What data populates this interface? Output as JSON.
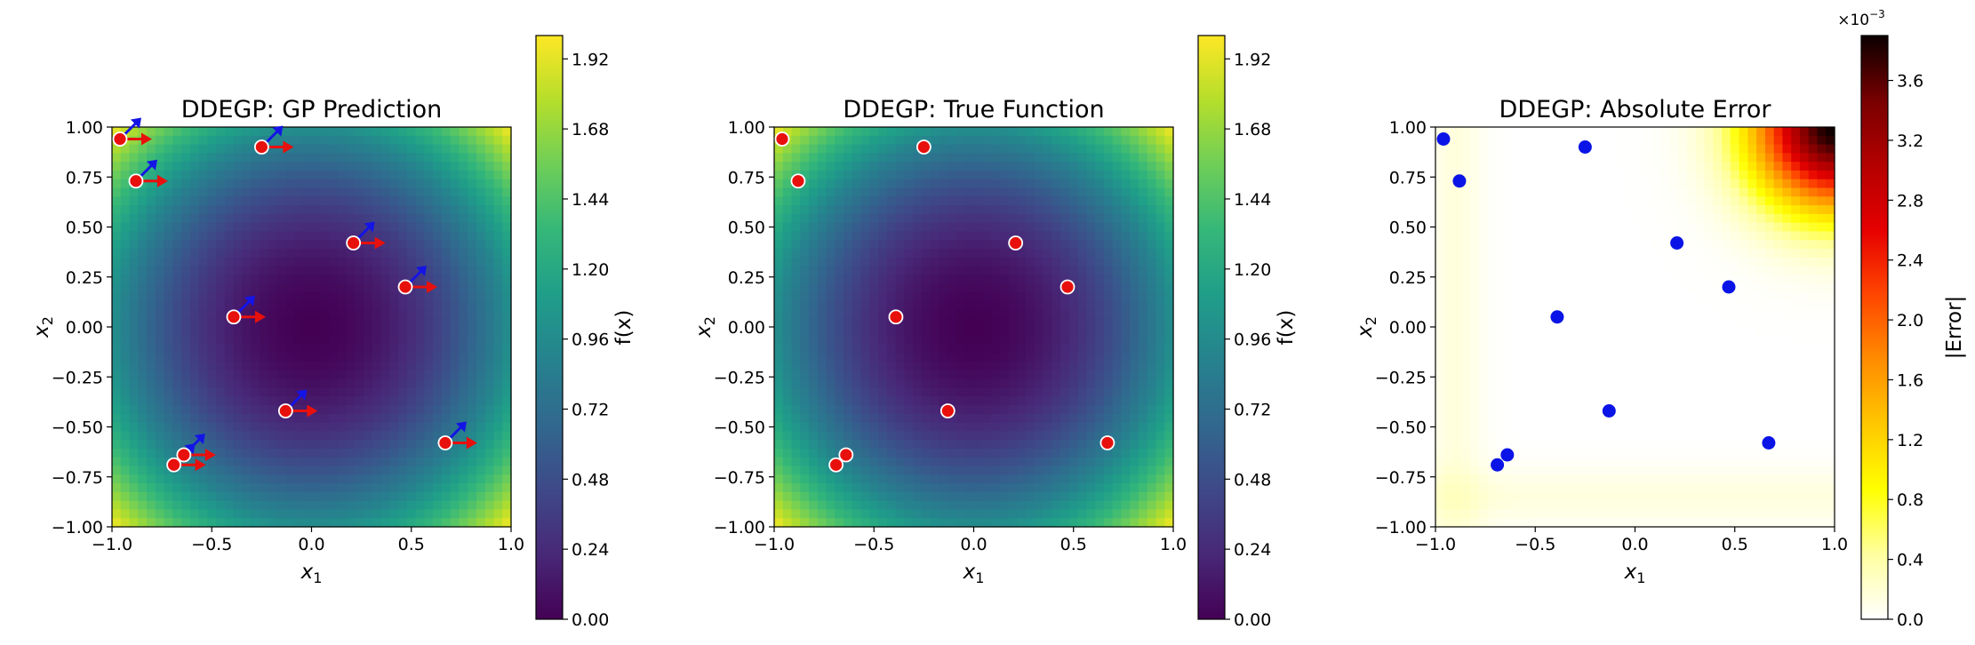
{
  "chart_data": [
    {
      "type": "heatmap",
      "title": "DDEGP: GP Prediction",
      "xlabel": "x_1",
      "ylabel": "x_2",
      "xlim": [
        -1,
        1
      ],
      "ylim": [
        -1,
        1
      ],
      "x_ticks": [
        "−1.0",
        "−0.5",
        "0.0",
        "0.5",
        "1.0"
      ],
      "y_ticks": [
        "1.00",
        "0.75",
        "0.50",
        "0.25",
        "0.00",
        "−0.25",
        "−0.50",
        "−0.75",
        "−1.00"
      ],
      "colormap": "viridis",
      "colorbar": {
        "label": "f(x)",
        "range": [
          0,
          2
        ],
        "ticks": [
          "0.00",
          "0.24",
          "0.48",
          "0.72",
          "0.96",
          "1.20",
          "1.44",
          "1.68",
          "1.92"
        ]
      },
      "points": [
        {
          "x": -0.96,
          "y": 0.94
        },
        {
          "x": -0.88,
          "y": 0.73
        },
        {
          "x": -0.25,
          "y": 0.9
        },
        {
          "x": 0.21,
          "y": 0.42
        },
        {
          "x": 0.47,
          "y": 0.2
        },
        {
          "x": -0.39,
          "y": 0.05
        },
        {
          "x": -0.13,
          "y": -0.42
        },
        {
          "x": 0.67,
          "y": -0.58
        },
        {
          "x": -0.64,
          "y": -0.64
        },
        {
          "x": -0.69,
          "y": -0.69
        }
      ],
      "directional_derivatives": [
        {
          "direction": "+x1",
          "color": "#e8100c"
        },
        {
          "direction": "diagonal",
          "color": "#1414e6"
        }
      ],
      "point_color": "#e8100c"
    },
    {
      "type": "heatmap",
      "title": "DDEGP: True Function",
      "xlabel": "x_1",
      "ylabel": "x_2",
      "xlim": [
        -1,
        1
      ],
      "ylim": [
        -1,
        1
      ],
      "x_ticks": [
        "−1.0",
        "−0.5",
        "0.0",
        "0.5",
        "1.0"
      ],
      "y_ticks": [
        "1.00",
        "0.75",
        "0.50",
        "0.25",
        "0.00",
        "−0.25",
        "−0.50",
        "−0.75",
        "−1.00"
      ],
      "colormap": "viridis",
      "colorbar": {
        "label": "f(x)",
        "range": [
          0,
          2
        ],
        "ticks": [
          "0.00",
          "0.24",
          "0.48",
          "0.72",
          "0.96",
          "1.20",
          "1.44",
          "1.68",
          "1.92"
        ]
      },
      "points": [
        {
          "x": -0.96,
          "y": 0.94
        },
        {
          "x": -0.88,
          "y": 0.73
        },
        {
          "x": -0.25,
          "y": 0.9
        },
        {
          "x": 0.21,
          "y": 0.42
        },
        {
          "x": 0.47,
          "y": 0.2
        },
        {
          "x": -0.39,
          "y": 0.05
        },
        {
          "x": -0.13,
          "y": -0.42
        },
        {
          "x": 0.67,
          "y": -0.58
        },
        {
          "x": -0.64,
          "y": -0.64
        },
        {
          "x": -0.69,
          "y": -0.69
        }
      ],
      "point_color": "#e8100c"
    },
    {
      "type": "heatmap",
      "title": "DDEGP: Absolute Error",
      "xlabel": "x_1",
      "ylabel": "x_2",
      "xlim": [
        -1,
        1
      ],
      "ylim": [
        -1,
        1
      ],
      "x_ticks": [
        "−1.0",
        "−0.5",
        "0.0",
        "0.5",
        "1.0"
      ],
      "y_ticks": [
        "1.00",
        "0.75",
        "0.50",
        "0.25",
        "0.00",
        "−0.25",
        "−0.50",
        "−0.75",
        "−1.00"
      ],
      "colormap": "hot_r",
      "colorbar": {
        "label": "|Error|",
        "range": [
          0,
          3.9
        ],
        "ticks": [
          "0.0",
          "0.4",
          "0.8",
          "1.2",
          "1.6",
          "2.0",
          "2.4",
          "2.8",
          "3.2",
          "3.6"
        ],
        "scale_text": "×10",
        "scale_exp": "−3"
      },
      "points": [
        {
          "x": -0.96,
          "y": 0.94
        },
        {
          "x": -0.88,
          "y": 0.73
        },
        {
          "x": -0.25,
          "y": 0.9
        },
        {
          "x": 0.21,
          "y": 0.42
        },
        {
          "x": 0.47,
          "y": 0.2
        },
        {
          "x": -0.39,
          "y": 0.05
        },
        {
          "x": -0.13,
          "y": -0.42
        },
        {
          "x": 0.67,
          "y": -0.58
        },
        {
          "x": -0.64,
          "y": -0.64
        },
        {
          "x": -0.69,
          "y": -0.69
        }
      ],
      "point_color": "#0a14e6"
    }
  ]
}
